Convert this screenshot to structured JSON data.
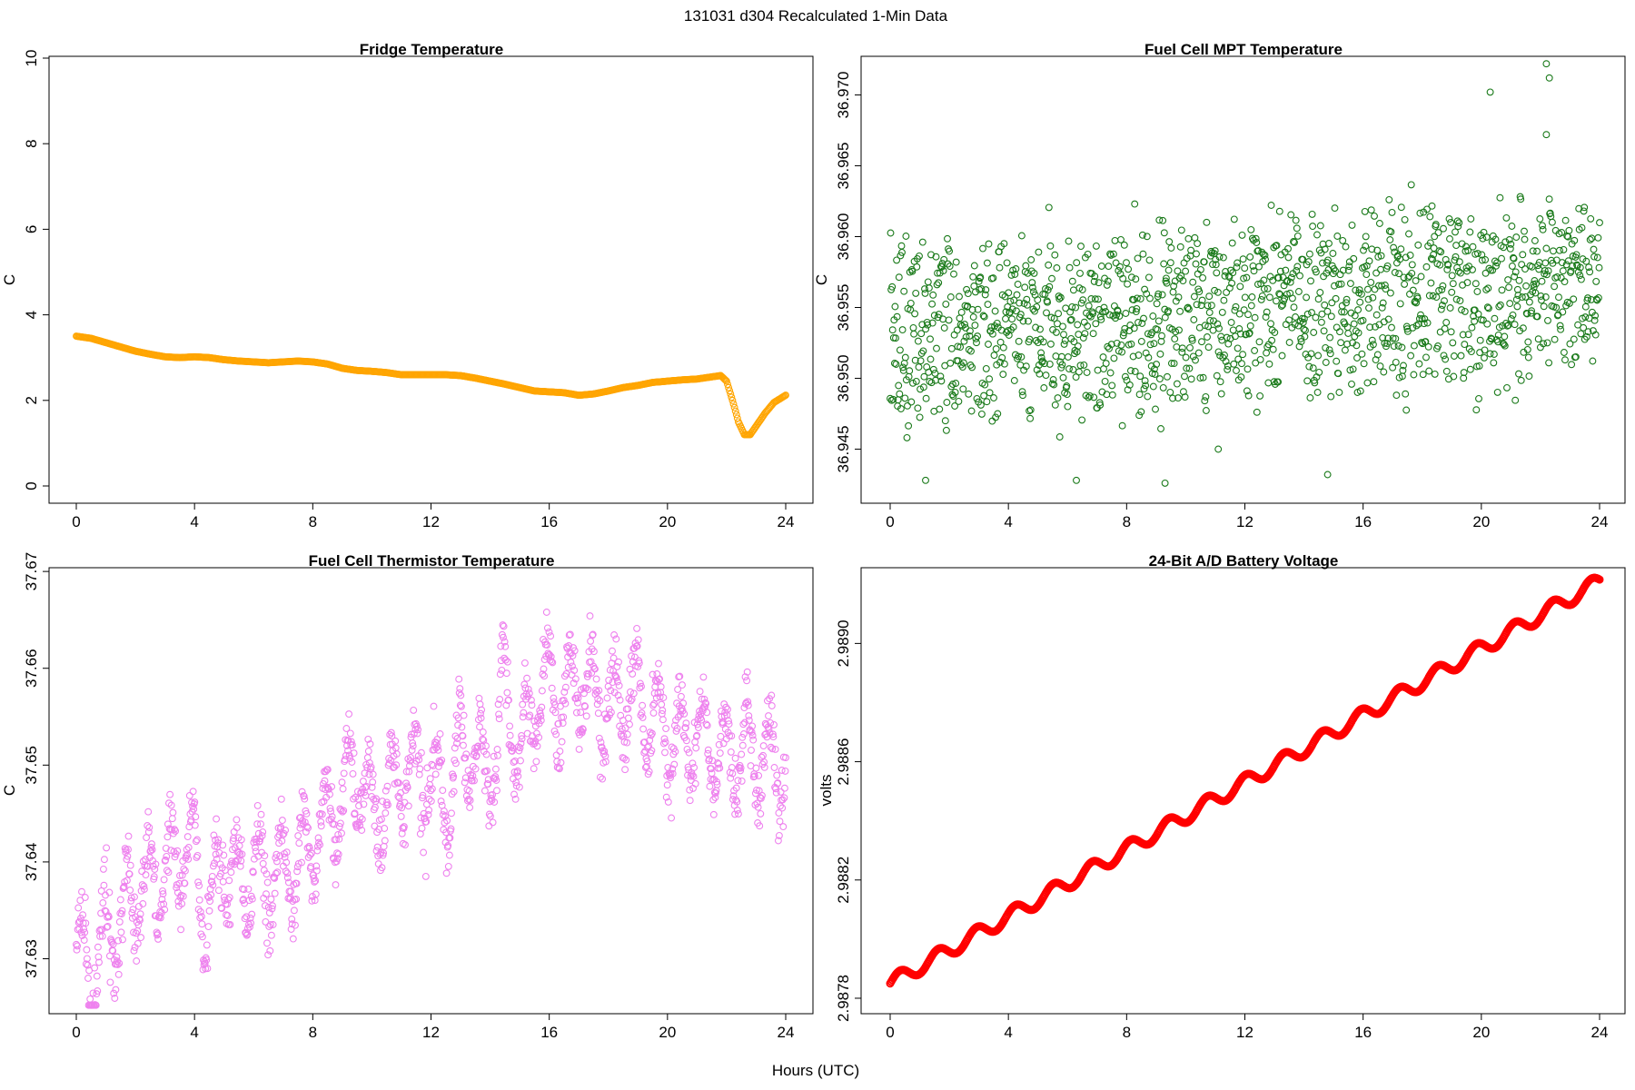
{
  "figure": {
    "title": "131031   d304   Recalculated 1-Min Data",
    "xlabel": "Hours (UTC)"
  },
  "chart_data": [
    {
      "type": "line",
      "marker": "open-circle",
      "title": "Fridge Temperature",
      "xlabel": "",
      "ylabel": "C",
      "color": "#FFA500",
      "xlim": [
        0,
        24
      ],
      "ylim": [
        0,
        10
      ],
      "x_ticks": [
        0,
        4,
        8,
        12,
        16,
        20,
        24
      ],
      "y_ticks": [
        0,
        2,
        4,
        6,
        8,
        10
      ],
      "y_tick_labels": [
        "0",
        "2",
        "4",
        "6",
        "8",
        "10"
      ],
      "series": [
        {
          "name": "Fridge Temperature",
          "x": [
            0,
            0.5,
            1,
            1.5,
            2,
            2.5,
            3,
            3.5,
            4,
            4.5,
            5,
            5.5,
            6,
            6.5,
            7,
            7.5,
            8,
            8.5,
            9,
            9.5,
            10,
            10.5,
            11,
            11.5,
            12,
            12.5,
            13,
            13.5,
            14,
            14.5,
            15,
            15.5,
            16,
            16.5,
            17,
            17.5,
            18,
            18.5,
            19,
            19.5,
            20,
            20.5,
            21,
            21.5,
            21.8,
            22,
            22.2,
            22.4,
            22.6,
            22.8,
            23,
            23.3,
            23.6,
            24
          ],
          "y": [
            3.5,
            3.45,
            3.35,
            3.25,
            3.15,
            3.08,
            3.02,
            3.0,
            3.02,
            3.0,
            2.95,
            2.92,
            2.9,
            2.88,
            2.9,
            2.92,
            2.9,
            2.85,
            2.75,
            2.7,
            2.68,
            2.65,
            2.6,
            2.6,
            2.6,
            2.6,
            2.58,
            2.52,
            2.45,
            2.38,
            2.3,
            2.22,
            2.2,
            2.18,
            2.12,
            2.15,
            2.22,
            2.3,
            2.35,
            2.42,
            2.45,
            2.48,
            2.5,
            2.55,
            2.58,
            2.45,
            2.0,
            1.5,
            1.2,
            1.2,
            1.4,
            1.7,
            1.95,
            2.12
          ]
        }
      ]
    },
    {
      "type": "scatter",
      "marker": "open-circle",
      "title": "Fuel Cell MPT Temperature",
      "xlabel": "",
      "ylabel": "C",
      "color": "#1A7A1A",
      "xlim": [
        0,
        24
      ],
      "ylim": [
        36.9424,
        36.9726
      ],
      "x_ticks": [
        0,
        4,
        8,
        12,
        16,
        20,
        24
      ],
      "y_ticks": [
        36.945,
        36.95,
        36.955,
        36.96,
        36.965,
        36.97
      ],
      "y_tick_labels": [
        "36.945",
        "36.950",
        "36.955",
        "36.960",
        "36.965",
        "36.970"
      ],
      "trend": {
        "x": [
          0,
          24
        ],
        "y": [
          36.953,
          36.9565
        ]
      },
      "spread": 0.0065,
      "n_points": 1440,
      "notable_points": {
        "x": [
          1.2,
          6.3,
          9.3,
          11.1,
          14.8,
          20.3,
          22.2,
          22.3,
          22.2
        ],
        "y": [
          36.9428,
          36.9428,
          36.9426,
          36.945,
          36.9432,
          36.9702,
          36.9722,
          36.9712,
          36.9672
        ]
      }
    },
    {
      "type": "scatter",
      "marker": "open-circle",
      "title": "Fuel Cell Thermistor Temperature",
      "xlabel": "",
      "ylabel": "C",
      "color": "#EE82EE",
      "xlim": [
        0,
        24
      ],
      "ylim": [
        37.6247,
        37.6702
      ],
      "x_ticks": [
        0,
        4,
        8,
        12,
        16,
        20,
        24
      ],
      "y_ticks": [
        37.63,
        37.64,
        37.65,
        37.66,
        37.67
      ],
      "y_tick_labels": [
        "37.63",
        "37.64",
        "37.65",
        "37.66",
        "37.67"
      ],
      "trend": {
        "x": [
          0,
          0.5,
          1,
          1.5,
          2,
          3,
          3.5,
          4,
          4.4,
          5,
          5.5,
          6,
          7,
          8,
          9,
          9.5,
          10,
          11,
          12,
          12.6,
          13,
          14,
          14.5,
          15,
          15.8,
          16.5,
          17,
          18,
          19,
          20,
          21,
          22,
          23,
          24
        ],
        "y": [
          37.63,
          37.628,
          37.633,
          37.634,
          37.637,
          37.639,
          37.641,
          37.641,
          37.633,
          37.641,
          37.637,
          37.638,
          37.639,
          37.642,
          37.647,
          37.649,
          37.644,
          37.649,
          37.649,
          37.645,
          37.652,
          37.649,
          37.657,
          37.651,
          37.659,
          37.656,
          37.659,
          37.656,
          37.657,
          37.653,
          37.653,
          37.651,
          37.651,
          37.65
        ]
      },
      "spread": 0.005,
      "n_points": 1440
    },
    {
      "type": "line",
      "marker": "open-circle",
      "title": "24-Bit A/D Battery Voltage",
      "xlabel": "",
      "ylabel": "volts",
      "color": "#FF0000",
      "xlim": [
        0,
        24
      ],
      "ylim": [
        2.98776,
        2.98925
      ],
      "x_ticks": [
        0,
        4,
        8,
        12,
        16,
        20,
        24
      ],
      "y_ticks": [
        2.9878,
        2.9882,
        2.9886,
        2.989
      ],
      "y_tick_labels": [
        "2.9878",
        "2.9882",
        "2.9886",
        "2.9890"
      ],
      "series": [
        {
          "name": "Battery Voltage",
          "x": [
            0,
            24
          ],
          "y": [
            2.98785,
            2.98921
          ]
        }
      ],
      "oscillation_amplitude": 2.5e-05,
      "oscillation_period_hours": 1.3
    }
  ]
}
